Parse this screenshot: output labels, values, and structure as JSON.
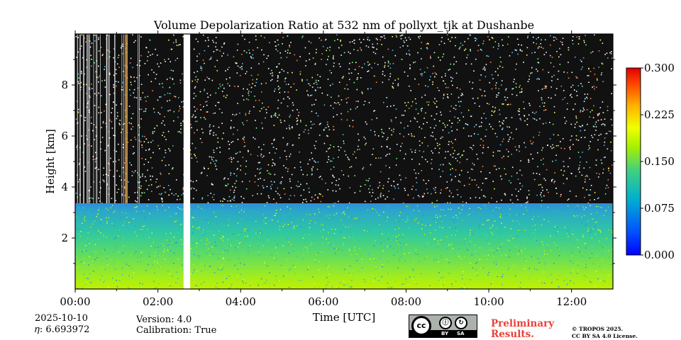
{
  "chart_data": {
    "type": "heatmap",
    "title": "Volume Depolarization Ratio at 532 nm of pollyxt_tjk at Dushanbe",
    "xlabel": "Time [UTC]",
    "ylabel": "Height [km]",
    "xlim_hours": [
      0,
      13
    ],
    "ylim_km": [
      0,
      10
    ],
    "x_ticks": [
      {
        "value": 0,
        "label": "00:00"
      },
      {
        "value": 2,
        "label": "02:00"
      },
      {
        "value": 4,
        "label": "04:00"
      },
      {
        "value": 6,
        "label": "06:00"
      },
      {
        "value": 8,
        "label": "08:00"
      },
      {
        "value": 10,
        "label": "10:00"
      },
      {
        "value": 12,
        "label": "12:00"
      }
    ],
    "y_ticks": [
      {
        "value": 2,
        "label": "2"
      },
      {
        "value": 4,
        "label": "4"
      },
      {
        "value": 6,
        "label": "6"
      },
      {
        "value": 8,
        "label": "8"
      }
    ],
    "colorbar": {
      "range": [
        0.0,
        0.3
      ],
      "ticks": [
        "0.000",
        "0.075",
        "0.150",
        "0.225",
        "0.300"
      ],
      "colormap": "jet"
    },
    "data_gap_hours": [
      2.62,
      2.78
    ],
    "boundary_layer_top_km": 3.3,
    "typical_values": {
      "near_surface_0_1km": 0.16,
      "layer_1_3km": 0.11,
      "above_layer_top": "noisy"
    }
  },
  "footer": {
    "date": "2025-10-10",
    "eta": "𝜂: 6.693972",
    "version": "Version: 4.0",
    "calibration": "Calibration: True",
    "prelim_line1": "Preliminary",
    "prelim_line2": "Results.",
    "copyright1": "© TROPOS 2025.",
    "copyright2": "CC BY SA 4.0 License.",
    "cc": "cc",
    "by": "BY",
    "sa": "SA"
  }
}
